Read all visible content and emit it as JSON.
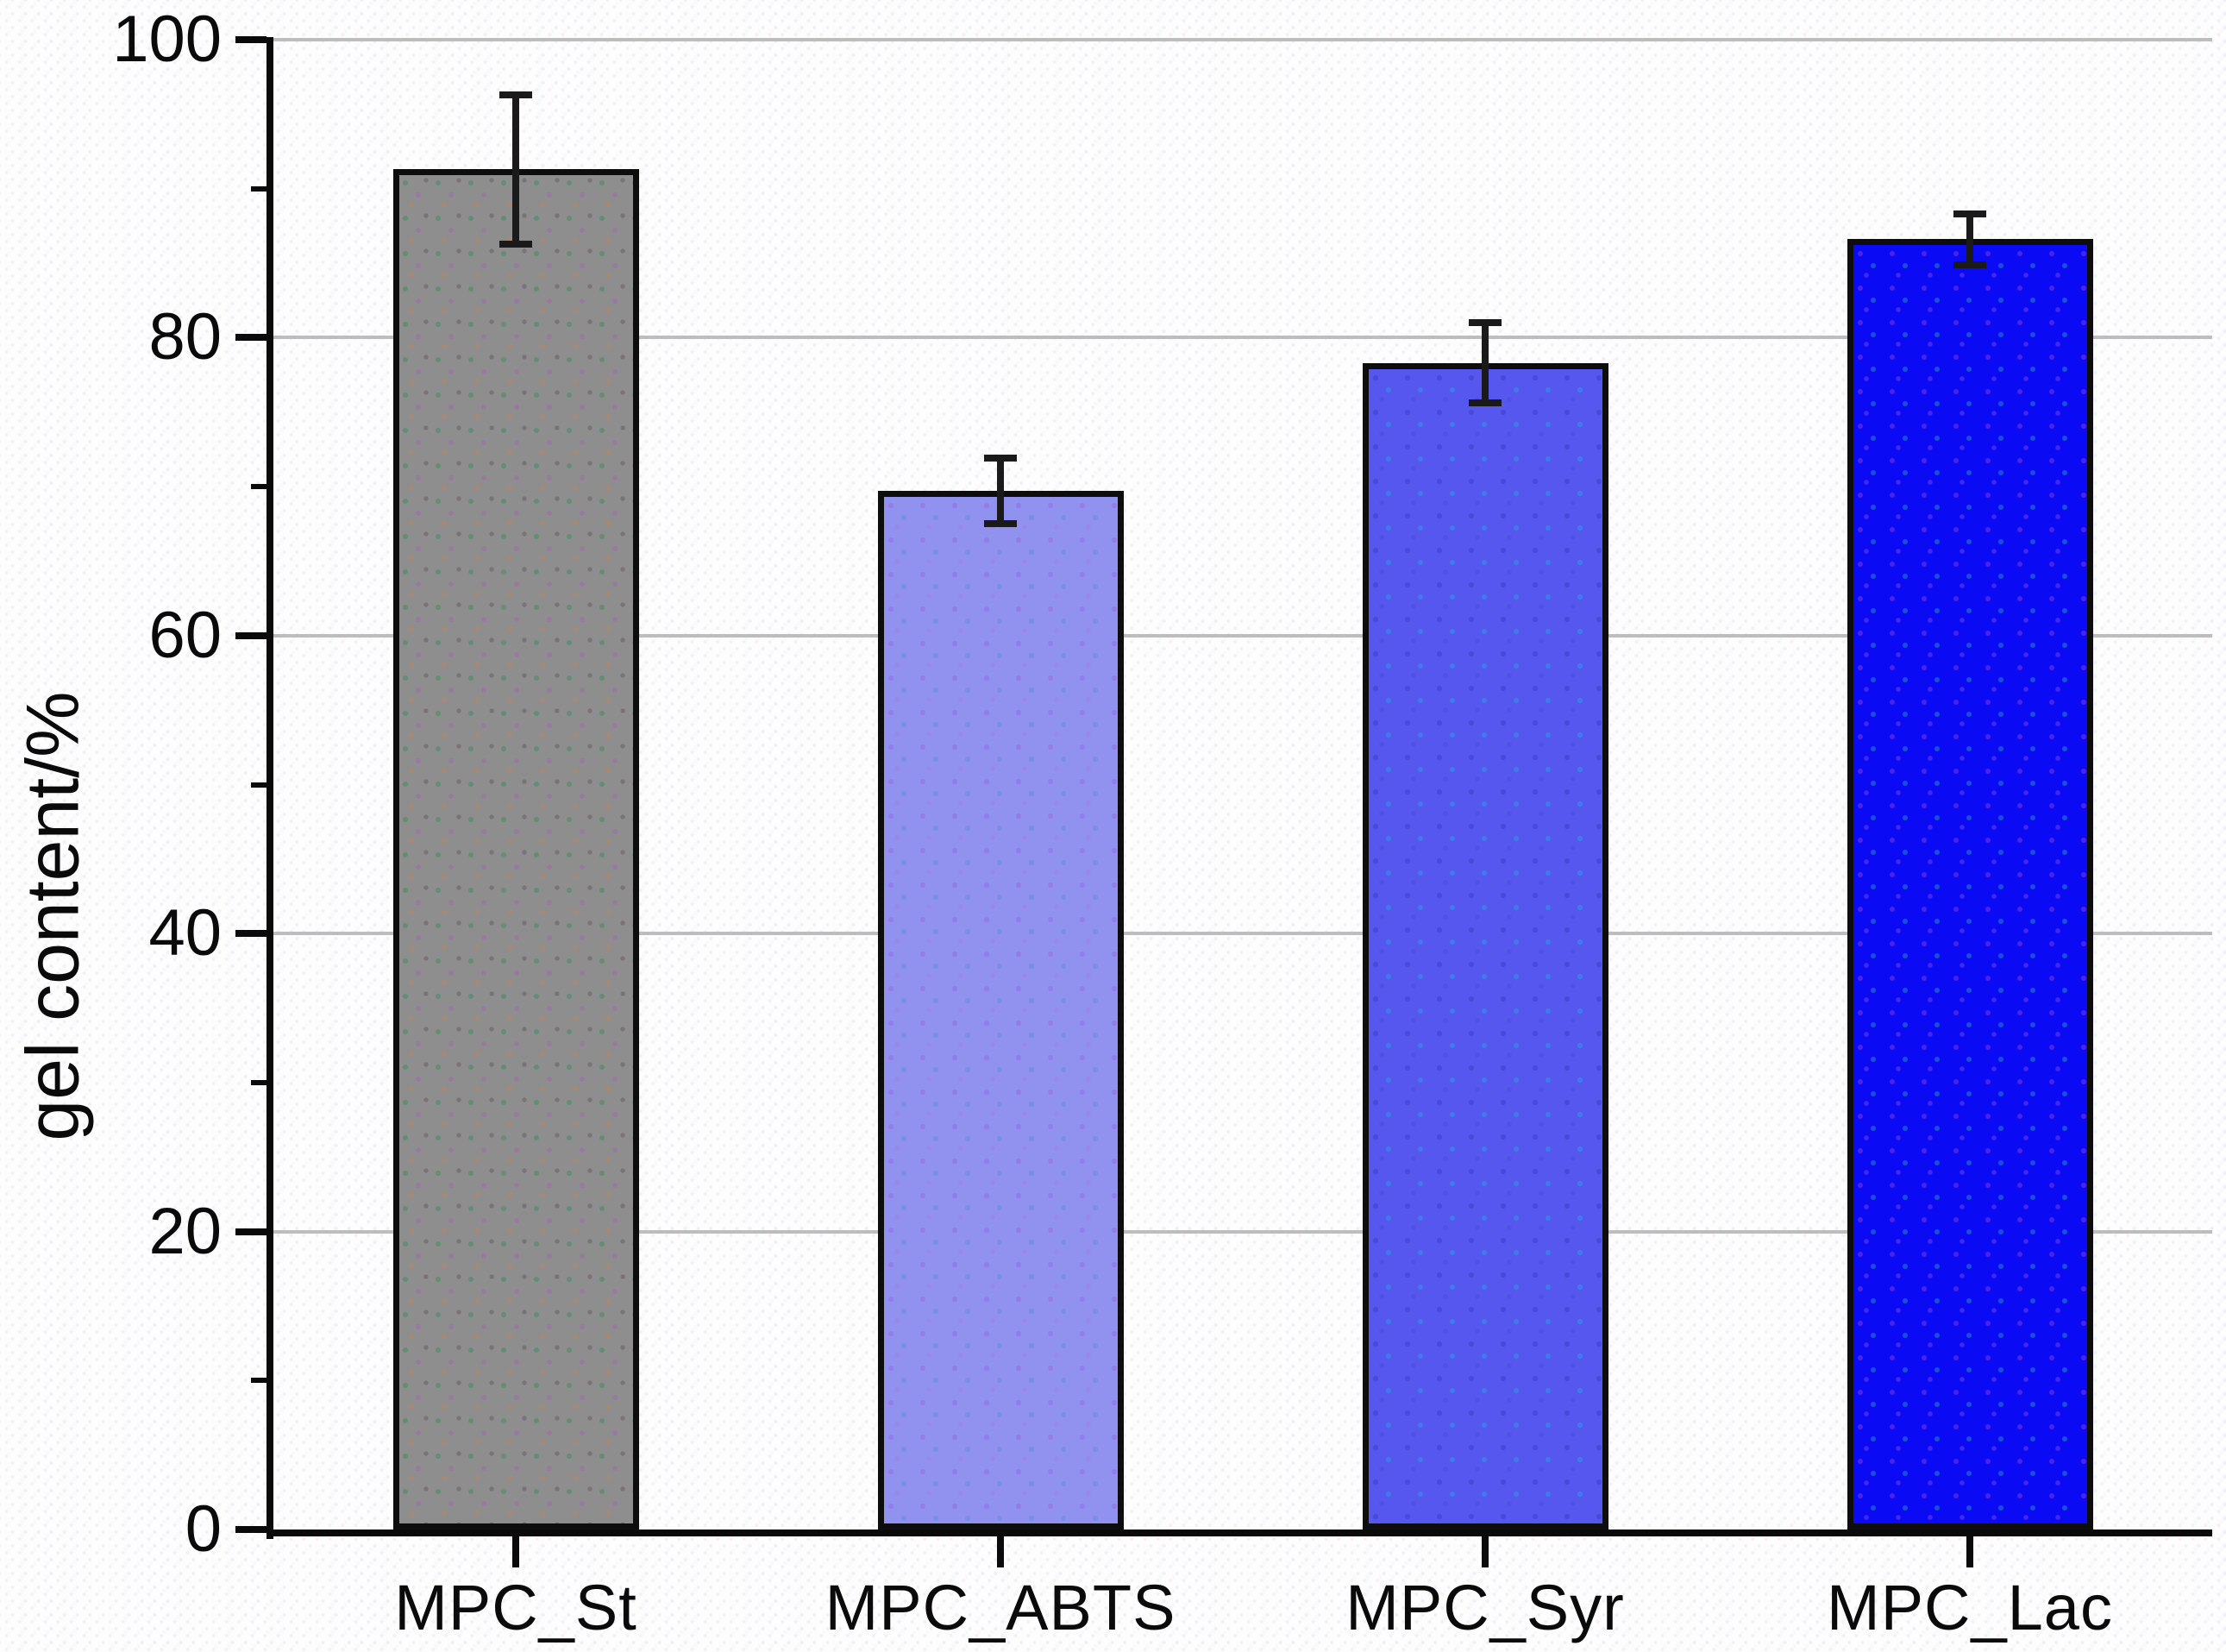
{
  "chart_data": {
    "type": "bar",
    "title": "",
    "xlabel": "",
    "ylabel": "gel content/%",
    "categories": [
      "MPC_St",
      "MPC_ABTS",
      "MPC_Syr",
      "MPC_Lac"
    ],
    "values": [
      91.3,
      69.7,
      78.3,
      86.6
    ],
    "errors": [
      5.0,
      2.2,
      2.7,
      1.7
    ],
    "bar_colors": [
      "#8e8e8e",
      "#9192f0",
      "#5657ee",
      "#0a0af5"
    ],
    "bar_border_color": "#0d0d0d",
    "error_bar_color": "#1a1a1a",
    "axis_color": "#0a0a0a",
    "gridline_color": "#bdbdbd",
    "ylim": [
      0,
      100
    ],
    "yticks": [
      0,
      20,
      40,
      60,
      80,
      100
    ],
    "minor_ytick_interval": 10,
    "grid": "horizontal-major",
    "legend": "none"
  }
}
